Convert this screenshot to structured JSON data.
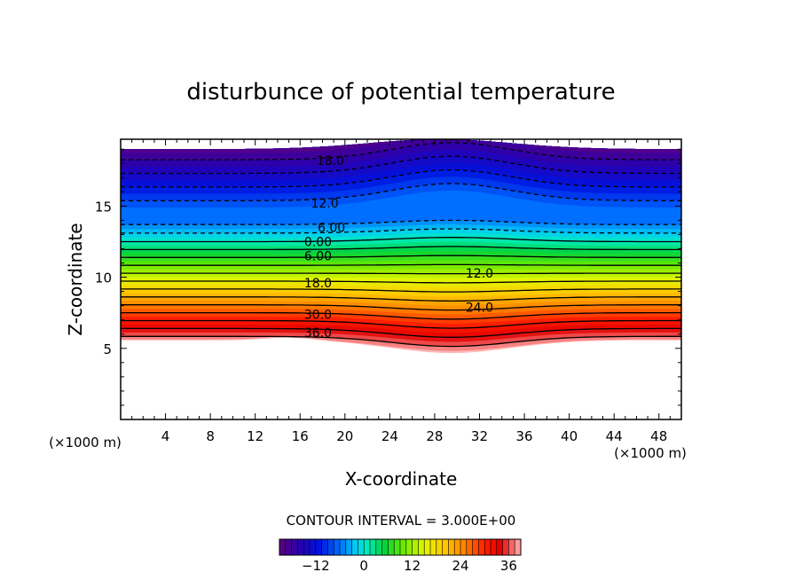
{
  "chart_data": {
    "type": "contour",
    "title": "disturbunce of potential temperature",
    "xlabel": "X-coordinate",
    "ylabel": "Z-coordinate",
    "x_unit_left": "(×1000 m)",
    "x_unit_right": "(×1000 m)",
    "xlim": [
      0,
      50
    ],
    "ylim": [
      0,
      19.7
    ],
    "x_ticks": [
      4,
      8,
      12,
      16,
      20,
      24,
      28,
      32,
      36,
      40,
      44,
      48
    ],
    "y_ticks": [
      5,
      10,
      15
    ],
    "contour_interval_text": "CONTOUR INTERVAL = 3.000E+00",
    "contour_interval": 3,
    "value_range": [
      -21,
      39
    ],
    "colorbar_ticks": [
      -12,
      0,
      12,
      24,
      36
    ],
    "contour_labels": [
      {
        "text": "18.0",
        "x": 18.7,
        "z": 18.2
      },
      {
        "text": "12.0",
        "x": 18.2,
        "z": 15.2
      },
      {
        "text": "6.00",
        "x": 18.8,
        "z": 13.5
      },
      {
        "text": "0.00",
        "x": 17.6,
        "z": 12.5
      },
      {
        "text": "6.00",
        "x": 17.6,
        "z": 11.5
      },
      {
        "text": "12.0",
        "x": 32.0,
        "z": 10.3
      },
      {
        "text": "18.0",
        "x": 17.6,
        "z": 9.6
      },
      {
        "text": "24.0",
        "x": 32.0,
        "z": 7.9
      },
      {
        "text": "30.0",
        "x": 17.6,
        "z": 7.4
      },
      {
        "text": "36.0",
        "x": 17.6,
        "z": 6.1
      }
    ]
  }
}
